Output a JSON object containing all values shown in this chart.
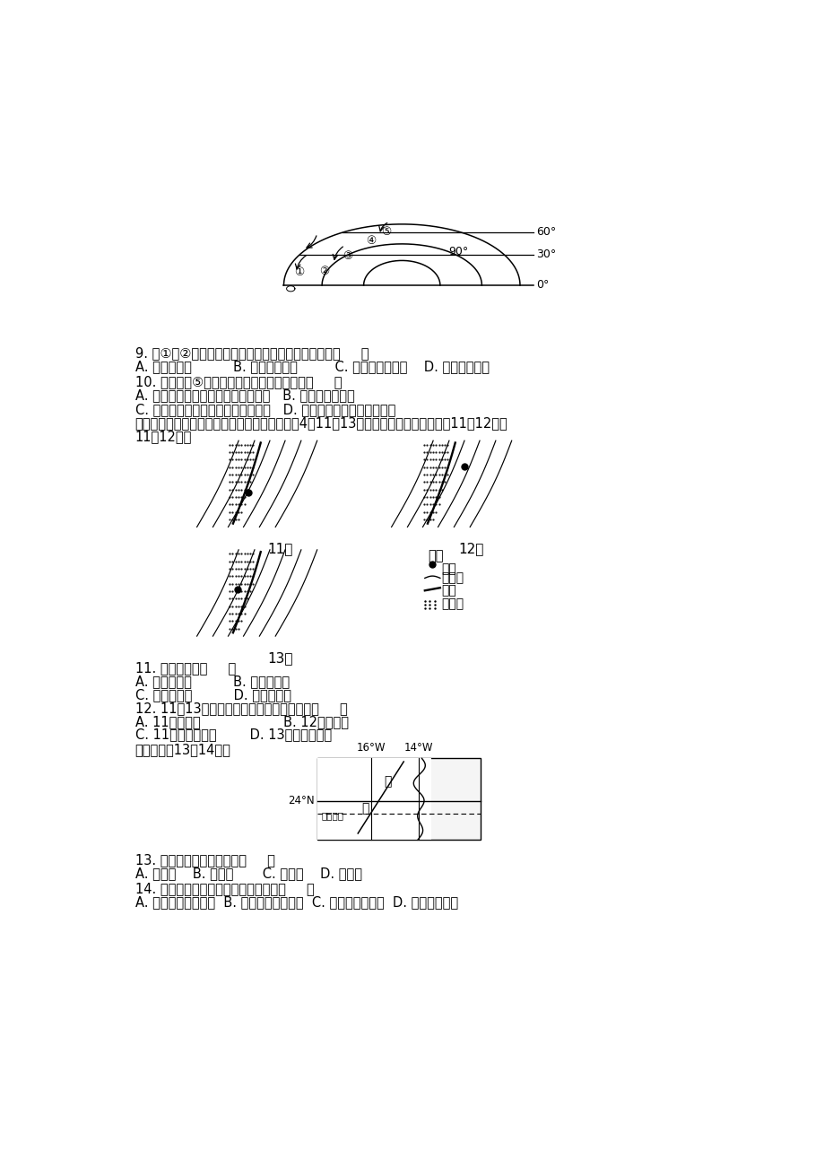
{
  "bg_color": "#ffffff",
  "text_color": "#000000",
  "font_size_body": 10.5,
  "font_size_small": 9.5,
  "q9_text": "9. 受①、②气压带、风带交替控制形成的气候类型是（     ）",
  "q9_options": "A. 地中海气候          B. 热带草原气候         C. 亚热带季风气候    D. 热带沙漠气候",
  "q10_text": "10. 当气压带⑤被切断时，下列说法正确的是（     ）",
  "q10_a": "A. 正值北半球夏季，北京盛行东南风   B. 南亚盛行东北风",
  "q10_b": "C. 北印度洋的季风洋流呈顺时针流动   D. 我国东南沿海常受台风影响",
  "q10_intro": "锋线指锋面与地面的交线，下图反映某地区某年4月11～13日锋线移动情况。读图完成11～12题。",
  "q11_text": "11. 该锋面属于（     ）",
  "q11_options_a": "A. 北半球冷锋          B. 南半球暖锋",
  "q11_options_b": "C. 北半球暖锋          D. 南半球冷锋",
  "q12_text": "12. 11～13日期间，甲地气温最低值出现在（     ）",
  "q12_options_a": "A. 11日的深夜                    B. 12日的深夜",
  "q12_options_b": "C. 11日的日出前后        D. 13日的日出前后",
  "q12_intro": "读图，回答13～14题。",
  "q13_text": "13. 图中洋流所在的大洋为（     ）",
  "q13_options": "A. 太平洋    B. 大西洋       C. 印度洋    D. 北冰洋",
  "q14_text": "14. 图中洋流对相邻陆地环境的影响是（     ）",
  "q14_options": "A. 增加了湿、热程度  B. 降低了干、热程度  C. 减轻了寒冷状况  D. 加剧了干燥状"
}
